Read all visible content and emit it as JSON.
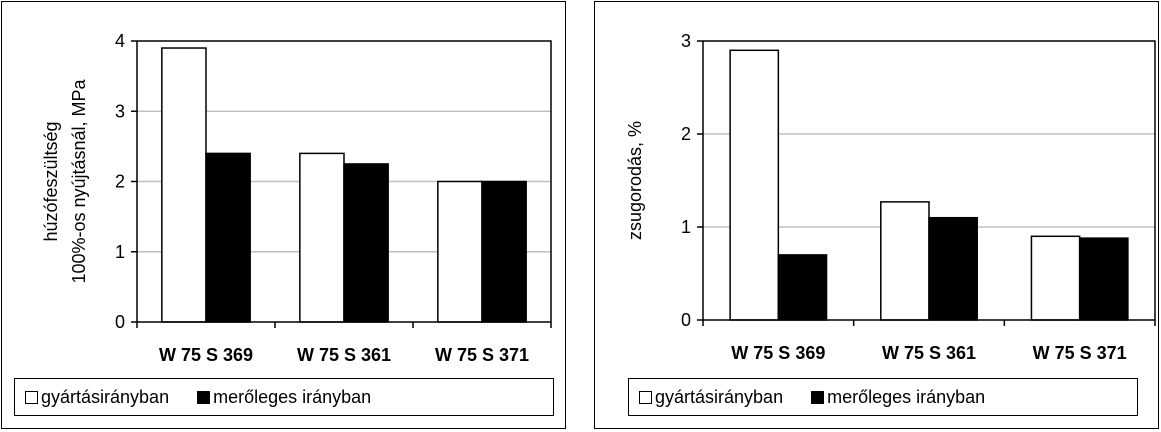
{
  "chart_data": [
    {
      "type": "bar",
      "ylabel": "húzófeszültség 100%-os nyújtásnál, MPa",
      "ylabel_lines": [
        "húzófeszültség",
        "100%-os nyújtásnál, MPa"
      ],
      "xlabel": "",
      "ylim": [
        0,
        4
      ],
      "yticks": [
        0,
        1,
        2,
        3,
        4
      ],
      "grid": true,
      "categories": [
        "W 75 S 369",
        "W 75 S 361",
        "W 75 S 371"
      ],
      "series": [
        {
          "name": "gyártásirányban",
          "color": "#ffffff",
          "values": [
            3.9,
            2.4,
            2.0
          ]
        },
        {
          "name": "merőleges irányban",
          "color": "#000000",
          "values": [
            2.4,
            2.25,
            2.0
          ]
        }
      ],
      "legend": "bottom"
    },
    {
      "type": "bar",
      "ylabel": "zsugorodás, %",
      "ylabel_lines": [
        "zsugorodás, %"
      ],
      "xlabel": "",
      "ylim": [
        0,
        3
      ],
      "yticks": [
        0,
        1,
        2,
        3
      ],
      "grid": true,
      "categories": [
        "W 75 S 369",
        "W 75 S 361",
        "W 75 S 371"
      ],
      "series": [
        {
          "name": "gyártásirányban",
          "color": "#ffffff",
          "values": [
            2.9,
            1.27,
            0.9
          ]
        },
        {
          "name": "merőleges irányban",
          "color": "#000000",
          "values": [
            0.7,
            1.1,
            0.88
          ]
        }
      ],
      "legend": "bottom"
    }
  ]
}
